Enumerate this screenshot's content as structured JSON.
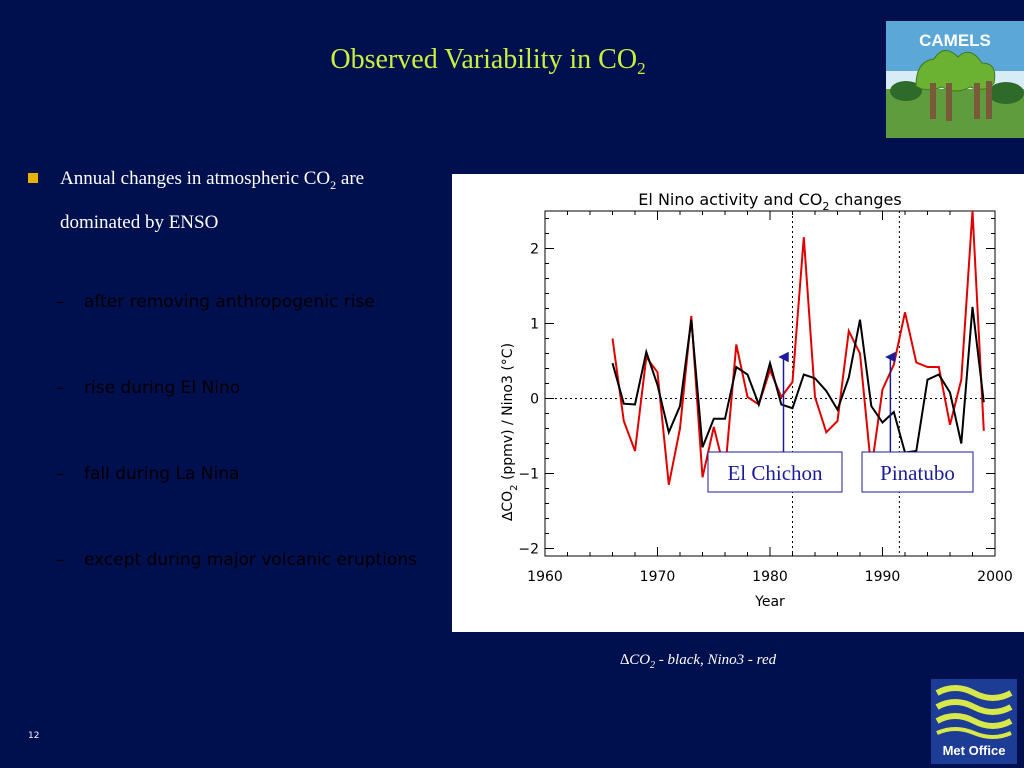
{
  "slide": {
    "title": "Observed Variability in CO",
    "title_sub": "2",
    "page_number": "12"
  },
  "logos": {
    "camels": "CAMELS",
    "metoffice": "Met Office"
  },
  "bullets": {
    "main_pre": "Annual changes in atmospheric CO",
    "main_sub": "2",
    "main_post": " are dominated by ENSO",
    "sub_items": [
      "after removing anthropogenic rise",
      "rise during El Nino",
      "fall during La Nina",
      "except during major volcanic eruptions"
    ],
    "dash": "–"
  },
  "caption": {
    "delta": "∆",
    "co2_pre": "CO",
    "co2_sub": "2",
    "rest": " - black,  Nino3 - red"
  },
  "colors": {
    "background": "#00104f",
    "title": "#c8f03c",
    "co2_series": "#000000",
    "nino3_series": "#e00000",
    "annotation": "#1c1c9a"
  },
  "chart_data": {
    "type": "line",
    "title_pre": "El Nino activity and CO",
    "title_sub": "2",
    "title_post": " changes",
    "xlabel": "Year",
    "ylabel_pre": "∆CO",
    "ylabel_sub": "2",
    "ylabel_post": " (ppmv)   /   Nino3 (°C)",
    "xlim": [
      1960,
      2000
    ],
    "ylim": [
      -2.1,
      2.5
    ],
    "xticks": [
      1960,
      1970,
      1980,
      1990,
      2000
    ],
    "yticks": [
      -2,
      -1,
      0,
      1,
      2
    ],
    "zero_line": "dotted",
    "volcano_lines": [
      1982,
      1991.5
    ],
    "annotations": [
      {
        "label": "El Chichon",
        "year": 1982
      },
      {
        "label": "Pinatubo",
        "year": 1991.5
      }
    ],
    "series": [
      {
        "name": "∆CO2",
        "x": [
          1966,
          1967,
          1968,
          1969,
          1970,
          1971,
          1972,
          1973,
          1974,
          1975,
          1976,
          1977,
          1978,
          1979,
          1980,
          1981,
          1982,
          1983,
          1984,
          1985,
          1986,
          1987,
          1988,
          1989,
          1990,
          1991,
          1992,
          1993,
          1994,
          1995,
          1996,
          1997,
          1998,
          1999
        ],
        "values": [
          0.47,
          -0.07,
          -0.08,
          0.62,
          0.18,
          -0.45,
          -0.1,
          1.05,
          -0.65,
          -0.27,
          -0.27,
          0.42,
          0.32,
          -0.08,
          0.47,
          -0.08,
          -0.13,
          0.32,
          0.27,
          0.1,
          -0.15,
          0.28,
          1.05,
          -0.1,
          -0.32,
          -0.18,
          -0.72,
          -0.7,
          0.25,
          0.32,
          0.08,
          -0.6,
          1.22,
          -0.05
        ]
      },
      {
        "name": "Nino3",
        "x": [
          1966,
          1967,
          1968,
          1969,
          1970,
          1971,
          1972,
          1973,
          1974,
          1975,
          1976,
          1977,
          1978,
          1979,
          1980,
          1981,
          1982,
          1983,
          1984,
          1985,
          1986,
          1987,
          1988,
          1989,
          1990,
          1991,
          1992,
          1993,
          1994,
          1995,
          1996,
          1997,
          1998,
          1999
        ],
        "values": [
          0.8,
          -0.3,
          -0.7,
          0.55,
          0.35,
          -1.15,
          -0.4,
          1.1,
          -1.05,
          -0.38,
          -0.98,
          0.72,
          0.02,
          -0.08,
          0.38,
          0.02,
          0.22,
          2.15,
          0.02,
          -0.45,
          -0.3,
          0.9,
          0.6,
          -0.95,
          0.12,
          0.45,
          1.15,
          0.48,
          0.42,
          0.42,
          -0.35,
          0.25,
          2.5,
          -0.43
        ]
      }
    ]
  }
}
